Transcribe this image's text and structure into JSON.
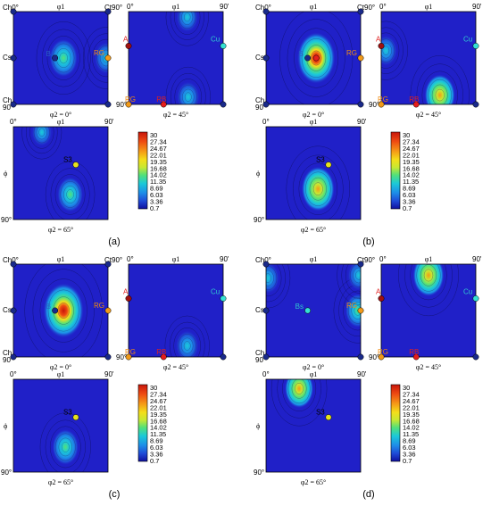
{
  "colors": {
    "background": "#2020c8",
    "frame": "#000000",
    "colormap": [
      "#10109e",
      "#1f49d6",
      "#1d8ee8",
      "#1cc9d8",
      "#52e07a",
      "#c8e832",
      "#f4de1a",
      "#f59a17",
      "#ee4a12",
      "#c8150a"
    ],
    "marker_yellow": "#e6e21d",
    "marker_cyan": "#35e0d3",
    "marker_orange": "#f19a1a",
    "marker_red": "#e51d1d",
    "marker_darkred": "#a01010",
    "marker_navy": "#1a2a8a",
    "label_orange": "#f08a10",
    "label_red": "#e02020",
    "label_cyan": "#30c8d0",
    "label_blue": "#2a60c8"
  },
  "axis_labels": {
    "phi1": "φ1",
    "phi": "ϕ",
    "deg0": "0°",
    "deg90": "90°",
    "deg90_short": "90'",
    "ctgo": "Ct90°"
  },
  "section_labels": {
    "phi2_0": "φ2 = 0°",
    "phi2_45": "φ2 = 45°",
    "phi2_65": "φ2 = 65°"
  },
  "component_labels": {
    "A": "A",
    "B": "B",
    "Bs": "Bs",
    "Cs": "Cs",
    "Ch": "Ch",
    "Ct": "Ct",
    "Cu": "Cu",
    "RG": "RG",
    "RB": "RB",
    "S3": "S3",
    "Ch0": "Ch0°",
    "Ch90": "Ch90°"
  },
  "colorbar_values": [
    "30",
    "27.34",
    "24.67",
    "22.01",
    "19.35",
    "16.68",
    "14.02",
    "11.35",
    "8.69",
    "6.03",
    "3.36",
    "0.7"
  ],
  "subfigures": [
    {
      "label": "(a)",
      "title_corner": "Ch0°"
    },
    {
      "label": "(b)",
      "title_corner": "Ch0°"
    },
    {
      "label": "(c)",
      "title_corner": "Ch0°"
    },
    {
      "label": "(d)",
      "title_corner": "Ch0°"
    }
  ],
  "peaks": {
    "a": {
      "phi2_0": [
        {
          "u": 0.53,
          "v": 0.5,
          "level": 0.42
        },
        {
          "u": 0.98,
          "v": 0.5,
          "level": 0.25
        }
      ],
      "phi2_45": [
        {
          "u": 0.63,
          "v": 0.92,
          "level": 0.22
        },
        {
          "u": 0.62,
          "v": 0.06,
          "level": 0.18
        }
      ],
      "phi2_65": [
        {
          "u": 0.6,
          "v": 0.73,
          "level": 0.32
        },
        {
          "u": 0.3,
          "v": 0.06,
          "level": 0.12
        }
      ]
    },
    "b": {
      "phi2_0": [
        {
          "u": 0.53,
          "v": 0.5,
          "level": 0.82
        }
      ],
      "phi2_45": [
        {
          "u": 0.62,
          "v": 0.9,
          "level": 0.52
        },
        {
          "u": 0.05,
          "v": 0.42,
          "level": 0.2
        }
      ],
      "phi2_65": [
        {
          "u": 0.55,
          "v": 0.67,
          "level": 0.62
        }
      ]
    },
    "c": {
      "phi2_0": [
        {
          "u": 0.53,
          "v": 0.5,
          "level": 0.92
        }
      ],
      "phi2_45": [
        {
          "u": 0.62,
          "v": 0.88,
          "level": 0.22
        }
      ],
      "phi2_65": [
        {
          "u": 0.55,
          "v": 0.73,
          "level": 0.35
        }
      ]
    },
    "d": {
      "phi2_0": [
        {
          "u": 0.97,
          "v": 0.5,
          "level": 0.3
        },
        {
          "u": 0.02,
          "v": 0.15,
          "level": 0.22
        },
        {
          "u": 0.98,
          "v": 0.12,
          "level": 0.2
        }
      ],
      "phi2_45": [
        {
          "u": 0.5,
          "v": 0.12,
          "level": 0.55
        }
      ],
      "phi2_65": [
        {
          "u": 0.35,
          "v": 0.1,
          "level": 0.45
        }
      ]
    }
  }
}
